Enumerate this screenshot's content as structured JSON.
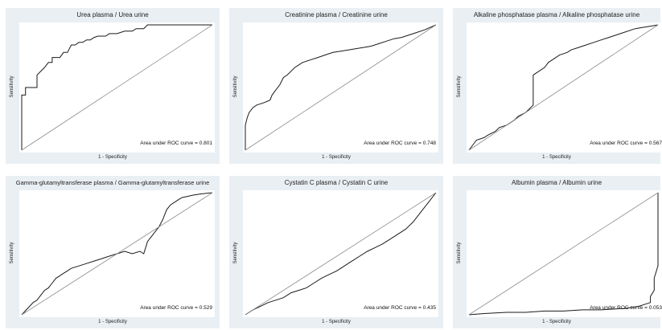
{
  "chart_data": [
    {
      "type": "line",
      "title": "Urea plasma / Urea urine",
      "xlabel": "1 - Specificity",
      "ylabel": "Sensitivity",
      "annotation_label": "Area under ROC curve = ",
      "auc": "0.801",
      "xlim": [
        0,
        1
      ],
      "ylim": [
        0,
        1
      ],
      "series": [
        {
          "x": [
            0,
            0,
            0.02,
            0.02,
            0.08,
            0.08,
            0.12,
            0.14,
            0.16,
            0.16,
            0.2,
            0.22,
            0.24,
            0.26,
            0.28,
            0.3,
            0.32,
            0.34,
            0.36,
            0.38,
            0.4,
            0.44,
            0.46,
            0.5,
            0.54,
            0.58,
            0.6,
            0.64,
            0.66,
            0.72,
            1
          ],
          "y": [
            0,
            0.44,
            0.44,
            0.5,
            0.5,
            0.6,
            0.66,
            0.7,
            0.7,
            0.74,
            0.74,
            0.78,
            0.78,
            0.84,
            0.84,
            0.86,
            0.86,
            0.88,
            0.88,
            0.9,
            0.91,
            0.91,
            0.93,
            0.93,
            0.95,
            0.95,
            0.97,
            0.97,
            1,
            1,
            1
          ]
        },
        {
          "x": [
            0,
            1
          ],
          "y": [
            0,
            1
          ]
        }
      ]
    },
    {
      "type": "line",
      "title": "Creatinine plasma / Creatinine urine",
      "xlabel": "1 - Specificity",
      "ylabel": "Sensitivity",
      "annotation_label": "Area under ROC curve = ",
      "auc": "0.748",
      "xlim": [
        0,
        1
      ],
      "ylim": [
        0,
        1
      ],
      "series": [
        {
          "x": [
            0,
            0,
            0.01,
            0.02,
            0.04,
            0.06,
            0.1,
            0.13,
            0.14,
            0.16,
            0.18,
            0.2,
            0.22,
            0.24,
            0.26,
            0.28,
            0.3,
            0.34,
            0.38,
            0.42,
            0.46,
            0.5,
            0.54,
            0.58,
            0.62,
            0.66,
            0.7,
            0.74,
            0.78,
            0.82,
            0.86,
            0.9,
            0.94,
            1
          ],
          "y": [
            0,
            0.2,
            0.26,
            0.3,
            0.34,
            0.36,
            0.38,
            0.4,
            0.44,
            0.48,
            0.52,
            0.58,
            0.6,
            0.63,
            0.66,
            0.68,
            0.7,
            0.72,
            0.74,
            0.76,
            0.78,
            0.79,
            0.8,
            0.81,
            0.82,
            0.83,
            0.85,
            0.87,
            0.89,
            0.9,
            0.92,
            0.94,
            0.96,
            1
          ]
        },
        {
          "x": [
            0,
            1
          ],
          "y": [
            0,
            1
          ]
        }
      ]
    },
    {
      "type": "line",
      "title": "Alkaline phosphatase plasma / Alkaline phosphatase urine",
      "xlabel": "1 - Specificity",
      "ylabel": "Sensitivity",
      "annotation_label": "Area under ROC curve = ",
      "auc": "0.567",
      "xlim": [
        0,
        1
      ],
      "ylim": [
        0,
        1
      ],
      "series": [
        {
          "x": [
            0,
            0.04,
            0.08,
            0.1,
            0.14,
            0.16,
            0.2,
            0.24,
            0.26,
            0.3,
            0.32,
            0.34,
            0.34,
            0.36,
            0.4,
            0.42,
            0.44,
            0.46,
            0.48,
            0.52,
            0.54,
            0.58,
            0.6,
            0.62,
            0.66,
            0.7,
            0.74,
            0.78,
            0.82,
            0.86,
            0.88,
            0.92,
            0.96,
            1
          ],
          "y": [
            0,
            0.08,
            0.1,
            0.12,
            0.15,
            0.18,
            0.2,
            0.24,
            0.27,
            0.3,
            0.33,
            0.36,
            0.6,
            0.62,
            0.66,
            0.7,
            0.72,
            0.74,
            0.76,
            0.78,
            0.8,
            0.82,
            0.83,
            0.84,
            0.86,
            0.88,
            0.9,
            0.92,
            0.94,
            0.96,
            0.97,
            0.98,
            0.99,
            1
          ]
        },
        {
          "x": [
            0,
            1
          ],
          "y": [
            0,
            1
          ]
        }
      ]
    },
    {
      "type": "line",
      "title": "Gamma-glutamyltransferase plasma / Gamma-glutamyltransferase urine",
      "xlabel": "1 - Specificity",
      "ylabel": "Sensitivity",
      "annotation_label": "Area under ROC curve = ",
      "auc": "0.529",
      "xlim": [
        0,
        1
      ],
      "ylim": [
        0,
        1
      ],
      "series": [
        {
          "x": [
            0,
            0.03,
            0.06,
            0.08,
            0.1,
            0.12,
            0.14,
            0.16,
            0.18,
            0.2,
            0.22,
            0.24,
            0.26,
            0.3,
            0.34,
            0.38,
            0.42,
            0.46,
            0.5,
            0.54,
            0.58,
            0.62,
            0.64,
            0.66,
            0.68,
            0.7,
            0.72,
            0.74,
            0.76,
            0.78,
            0.8,
            0.82,
            0.84,
            0.9,
            0.94,
            1
          ],
          "y": [
            0,
            0.05,
            0.1,
            0.12,
            0.16,
            0.2,
            0.22,
            0.26,
            0.3,
            0.32,
            0.34,
            0.36,
            0.38,
            0.4,
            0.42,
            0.44,
            0.46,
            0.48,
            0.5,
            0.52,
            0.5,
            0.52,
            0.5,
            0.6,
            0.64,
            0.68,
            0.72,
            0.78,
            0.86,
            0.9,
            0.92,
            0.94,
            0.96,
            0.98,
            0.99,
            1
          ]
        },
        {
          "x": [
            0,
            1
          ],
          "y": [
            0,
            1
          ]
        }
      ]
    },
    {
      "type": "line",
      "title": "Cystatin C plasma / Cystatin C urine",
      "xlabel": "1 - Specificity",
      "ylabel": "Sensitivity",
      "annotation_label": "Area under ROC curve = ",
      "auc": "0.435",
      "xlim": [
        0,
        1
      ],
      "ylim": [
        0,
        1
      ],
      "series": [
        {
          "x": [
            0,
            0.04,
            0.08,
            0.12,
            0.16,
            0.2,
            0.24,
            0.28,
            0.32,
            0.36,
            0.4,
            0.44,
            0.48,
            0.52,
            0.56,
            0.6,
            0.64,
            0.68,
            0.72,
            0.76,
            0.8,
            0.84,
            0.88,
            0.92,
            0.96,
            1
          ],
          "y": [
            0,
            0.04,
            0.07,
            0.1,
            0.12,
            0.14,
            0.18,
            0.2,
            0.22,
            0.26,
            0.3,
            0.33,
            0.36,
            0.4,
            0.44,
            0.48,
            0.52,
            0.55,
            0.58,
            0.62,
            0.66,
            0.7,
            0.76,
            0.84,
            0.92,
            1
          ]
        },
        {
          "x": [
            0,
            1
          ],
          "y": [
            0,
            1
          ]
        }
      ]
    },
    {
      "type": "line",
      "title": "Albumin plasma / Albumin urine",
      "xlabel": "1 - Specificity",
      "ylabel": "Sensitivity",
      "annotation_label": "Area under ROC curve = ",
      "auc": "0.053",
      "xlim": [
        0,
        1
      ],
      "ylim": [
        0,
        1
      ],
      "series": [
        {
          "x": [
            0,
            0.08,
            0.2,
            0.3,
            0.4,
            0.5,
            0.6,
            0.7,
            0.8,
            0.82,
            0.86,
            0.9,
            0.92,
            0.94,
            0.96,
            0.96,
            0.98,
            0.98,
            1,
            1
          ],
          "y": [
            0,
            0.01,
            0.02,
            0.02,
            0.03,
            0.03,
            0.04,
            0.04,
            0.05,
            0.05,
            0.06,
            0.07,
            0.08,
            0.09,
            0.1,
            0.15,
            0.2,
            0.3,
            0.4,
            1
          ]
        },
        {
          "x": [
            0,
            1
          ],
          "y": [
            0,
            1
          ]
        }
      ]
    }
  ]
}
